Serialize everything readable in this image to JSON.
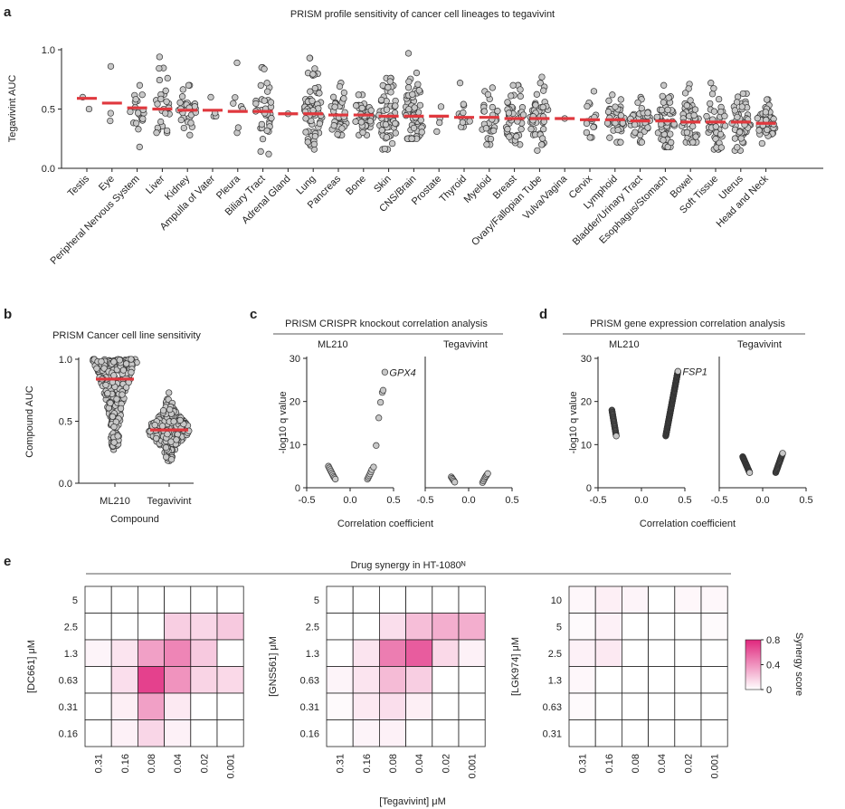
{
  "chart_data": [
    {
      "id": "a",
      "type": "scatter",
      "panel_label": "a",
      "title": "PRISM profile sensitivity of cancer cell lineages to tegavivint",
      "ylabel": "Tegavivint AUC",
      "ylim": [
        0,
        1.0
      ],
      "yticks": [
        "0.0",
        "0.5",
        "1.0"
      ],
      "categories": [
        "Testis",
        "Eye",
        "Peripheral Nervous System",
        "Liver",
        "Kidney",
        "Ampulla of Vater",
        "Pleura",
        "Biliary Tract",
        "Adrenal Gland",
        "Lung",
        "Pancreas",
        "Bone",
        "Skin",
        "CNS/Brain",
        "Prostate",
        "Thyroid",
        "Myeloid",
        "Breast",
        "Ovary/Fallopian Tube",
        "Vulva/Vagina",
        "Cervix",
        "Lymphoid",
        "Bladder/Urinary Tract",
        "Esophagus/Stomach",
        "Bowel",
        "Soft Tissue",
        "Uterus",
        "Head and Neck"
      ],
      "medians": [
        0.59,
        0.55,
        0.51,
        0.5,
        0.49,
        0.49,
        0.48,
        0.48,
        0.46,
        0.46,
        0.45,
        0.45,
        0.44,
        0.44,
        0.44,
        0.43,
        0.43,
        0.42,
        0.42,
        0.42,
        0.41,
        0.41,
        0.4,
        0.4,
        0.39,
        0.39,
        0.39,
        0.38
      ],
      "n_points": [
        2,
        3,
        20,
        25,
        30,
        4,
        7,
        35,
        1,
        70,
        35,
        40,
        60,
        70,
        4,
        12,
        30,
        45,
        45,
        1,
        15,
        40,
        40,
        55,
        45,
        40,
        45,
        45
      ],
      "max_values": [
        0.6,
        0.86,
        0.7,
        0.94,
        0.7,
        0.6,
        0.89,
        0.85,
        0.46,
        0.93,
        0.72,
        0.62,
        0.76,
        0.97,
        0.52,
        0.72,
        0.68,
        0.7,
        0.77,
        0.42,
        0.65,
        0.62,
        0.6,
        0.7,
        0.71,
        0.72,
        0.63,
        0.58
      ],
      "min_values": [
        0.5,
        0.4,
        0.18,
        0.3,
        0.28,
        0.44,
        0.3,
        0.12,
        0.46,
        0.16,
        0.28,
        0.28,
        0.16,
        0.25,
        0.31,
        0.35,
        0.2,
        0.2,
        0.15,
        0.42,
        0.26,
        0.22,
        0.22,
        0.18,
        0.22,
        0.16,
        0.15,
        0.21
      ],
      "colors": {
        "median": "#e0383e",
        "point_fill": "#c8c8c8"
      }
    },
    {
      "id": "b",
      "type": "scatter",
      "panel_label": "b",
      "title": "PRISM Cancer cell line sensitivity",
      "ylabel": "Compound AUC",
      "xlabel": "Compound",
      "ylim": [
        0,
        1.0
      ],
      "yticks": [
        "0.0",
        "0.5",
        "1.0"
      ],
      "categories": [
        "ML210",
        "Tegavivint"
      ],
      "medians": [
        0.84,
        0.43
      ],
      "ranges": [
        [
          0.27,
          1.0
        ],
        [
          0.14,
          0.95
        ]
      ]
    },
    {
      "id": "c",
      "type": "scatter",
      "panel_label": "c",
      "title": "PRISM CRISPR knockout correlation analysis",
      "ylabel": "-log10 q value",
      "xlabel": "Correlation coefficient",
      "ylim": [
        0,
        30
      ],
      "xlim": [
        -0.5,
        0.5
      ],
      "yticks": [
        "0",
        "10",
        "20",
        "30"
      ],
      "xticks": [
        "-0.5",
        "0.0",
        "0.5"
      ],
      "subplots": [
        {
          "name": "ML210",
          "label_gene": "GPX4",
          "points": [
            [
              -0.25,
              5.0
            ],
            [
              -0.24,
              4.6
            ],
            [
              -0.23,
              4.2
            ],
            [
              -0.22,
              3.8
            ],
            [
              -0.21,
              3.4
            ],
            [
              -0.2,
              3.0
            ],
            [
              -0.19,
              2.6
            ],
            [
              -0.18,
              2.3
            ],
            [
              -0.17,
              2.0
            ],
            [
              0.2,
              2.0
            ],
            [
              0.21,
              2.4
            ],
            [
              0.22,
              2.8
            ],
            [
              0.23,
              3.2
            ],
            [
              0.24,
              3.7
            ],
            [
              0.25,
              4.2
            ],
            [
              0.27,
              4.8
            ],
            [
              0.3,
              9.8
            ],
            [
              0.33,
              16.2
            ],
            [
              0.35,
              19.8
            ],
            [
              0.37,
              22.1
            ],
            [
              0.38,
              22.6
            ],
            [
              0.4,
              26.8
            ]
          ]
        },
        {
          "name": "Tegavivint",
          "points": [
            [
              -0.2,
              2.5
            ],
            [
              -0.19,
              2.2
            ],
            [
              -0.18,
              1.9
            ],
            [
              -0.17,
              1.6
            ],
            [
              -0.16,
              1.3
            ],
            [
              0.16,
              1.2
            ],
            [
              0.17,
              1.6
            ],
            [
              0.18,
              2.0
            ],
            [
              0.19,
              2.4
            ],
            [
              0.2,
              2.7
            ],
            [
              0.21,
              3.0
            ],
            [
              0.22,
              3.3
            ]
          ]
        }
      ]
    },
    {
      "id": "d",
      "type": "scatter",
      "panel_label": "d",
      "title": "PRISM gene expression correlation analysis",
      "ylabel": "-log10 q value",
      "xlabel": "Correlation coefficient",
      "ylim": [
        0,
        30
      ],
      "xlim": [
        -0.5,
        0.5
      ],
      "yticks": [
        "0",
        "10",
        "20",
        "30"
      ],
      "xticks": [
        "-0.5",
        "0.0",
        "0.5"
      ],
      "subplots": [
        {
          "name": "ML210",
          "label_gene": "FSP1",
          "neg_segment": [
            [
              -0.34,
              18.0
            ],
            [
              -0.29,
              12.0
            ]
          ],
          "pos_segment": [
            [
              0.28,
              12.0
            ],
            [
              0.42,
              27.0
            ]
          ]
        },
        {
          "name": "Tegavivint",
          "neg_segment": [
            [
              -0.23,
              7.2
            ],
            [
              -0.15,
              3.5
            ]
          ],
          "pos_segment": [
            [
              0.15,
              3.5
            ],
            [
              0.23,
              8.0
            ]
          ]
        }
      ]
    },
    {
      "id": "e",
      "type": "heatmap",
      "panel_label": "e",
      "title": "Drug synergy in HT-1080ᴺ",
      "xlabel": "[Tegavivint] μM",
      "x_categories": [
        "0.31",
        "0.16",
        "0.08",
        "0.04",
        "0.02",
        "0.001"
      ],
      "colorbar": {
        "label": "Synergy score",
        "ticks": [
          "0.8",
          "0.4",
          "0"
        ],
        "min": 0,
        "max": 0.8,
        "low_color": "#ffffff",
        "high_color": "#e0267d"
      },
      "heatmaps": [
        {
          "ylabel": "[DC661] μM",
          "y_categories": [
            "5",
            "2.5",
            "1.3",
            "0.63",
            "0.31",
            "0.16"
          ],
          "values": [
            [
              0,
              0,
              0,
              0,
              0,
              0
            ],
            [
              0,
              0,
              0,
              0.18,
              0.15,
              0.2
            ],
            [
              0.04,
              0.1,
              0.35,
              0.45,
              0.2,
              0
            ],
            [
              0,
              0.12,
              0.7,
              0.4,
              0.16,
              0.14
            ],
            [
              0,
              0.06,
              0.35,
              0.08,
              0,
              0
            ],
            [
              0,
              0.05,
              0.15,
              0.05,
              0,
              0
            ]
          ]
        },
        {
          "ylabel": "[GNS561] μM",
          "y_categories": [
            "5",
            "2.5",
            "1.3",
            "0.63",
            "0.31",
            "0.16"
          ],
          "values": [
            [
              0,
              0,
              0,
              0,
              0,
              0
            ],
            [
              0,
              0,
              0.12,
              0.24,
              0.3,
              0.3
            ],
            [
              0,
              0.1,
              0.48,
              0.6,
              0.14,
              0.05
            ],
            [
              0.04,
              0.1,
              0.25,
              0.18,
              0,
              0
            ],
            [
              0.02,
              0.08,
              0.12,
              0.06,
              0,
              0
            ],
            [
              0,
              0.04,
              0.05,
              0,
              0,
              0
            ]
          ]
        },
        {
          "ylabel": "[LGK974] μM",
          "y_categories": [
            "10",
            "5",
            "2.5",
            "1.3",
            "0.63",
            "0.31"
          ],
          "values": [
            [
              0.03,
              0.06,
              0.04,
              0,
              0.03,
              0.03
            ],
            [
              0.02,
              0.05,
              0,
              0,
              0,
              0.02
            ],
            [
              0.05,
              0.08,
              0,
              0,
              0,
              0
            ],
            [
              0.03,
              0,
              0,
              0,
              0,
              0
            ],
            [
              0.02,
              0,
              0,
              0,
              0,
              0
            ],
            [
              0,
              0,
              0,
              0,
              0,
              0
            ]
          ]
        }
      ]
    }
  ]
}
